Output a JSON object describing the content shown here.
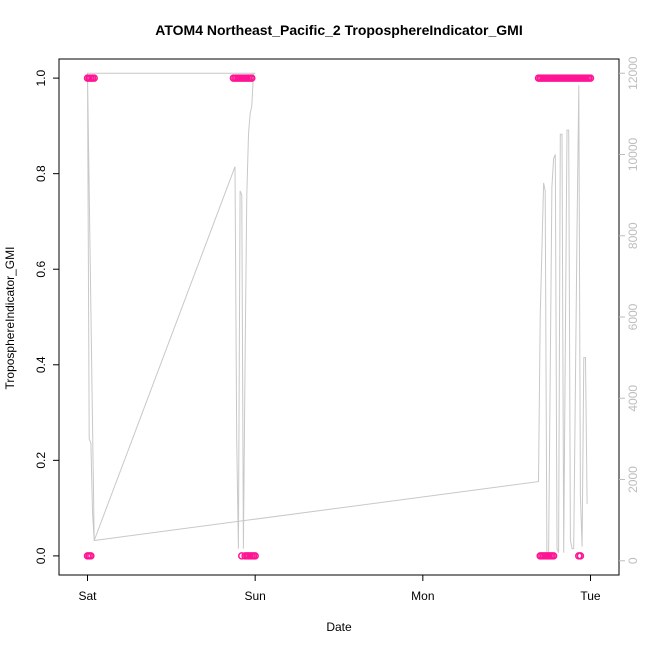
{
  "chart_data": {
    "type": "scatter",
    "title": "ATOM4 Northeast_Pacific_2 TroposphereIndicator_GMI",
    "xlabel": "Date",
    "ylabel": "TroposphereIndicator_GMI",
    "x_ticks": [
      "Sat",
      "Sun",
      "Mon",
      "Tue"
    ],
    "x_tick_positions": [
      0,
      1,
      2,
      3
    ],
    "xlim": [
      -0.17,
      3.17
    ],
    "ylim": [
      -0.04,
      1.04
    ],
    "y_ticks": [
      "0.0",
      "0.2",
      "0.4",
      "0.6",
      "0.8",
      "1.0"
    ],
    "y_tick_values": [
      0,
      0.2,
      0.4,
      0.6,
      0.8,
      1.0
    ],
    "y2lim": [
      -350,
      12350
    ],
    "y2_ticks": [
      "0",
      "2000",
      "4000",
      "6000",
      "8000",
      "10000",
      "12000"
    ],
    "y2_tick_values": [
      0,
      2000,
      4000,
      6000,
      8000,
      10000,
      12000
    ],
    "colors": {
      "points": "#ff1493",
      "altitude_line": "#c8c8c8",
      "axis": "#000000",
      "right_axis": "#bdbdbd"
    },
    "series": [
      {
        "values_scatter": [
          [
            0.0,
            1
          ],
          [
            0.01,
            1
          ],
          [
            0.02,
            1
          ],
          [
            0.03,
            1
          ],
          [
            0.04,
            1
          ],
          [
            0.0,
            0
          ],
          [
            0.01,
            0
          ],
          [
            0.02,
            0
          ],
          [
            0.87,
            1
          ],
          [
            0.88,
            1
          ],
          [
            0.89,
            1
          ],
          [
            0.9,
            1
          ],
          [
            0.91,
            1
          ],
          [
            0.92,
            1
          ],
          [
            0.93,
            1
          ],
          [
            0.94,
            1
          ],
          [
            0.95,
            1
          ],
          [
            0.96,
            1
          ],
          [
            0.97,
            1
          ],
          [
            0.98,
            1
          ],
          [
            0.92,
            0
          ],
          [
            0.94,
            0
          ],
          [
            0.95,
            0
          ],
          [
            0.96,
            0
          ],
          [
            0.97,
            0
          ],
          [
            0.98,
            0
          ],
          [
            0.99,
            0
          ],
          [
            1.0,
            0
          ],
          [
            2.69,
            1
          ],
          [
            2.7,
            1
          ],
          [
            2.71,
            1
          ],
          [
            2.72,
            1
          ],
          [
            2.73,
            1
          ],
          [
            2.74,
            1
          ],
          [
            2.75,
            1
          ],
          [
            2.76,
            1
          ],
          [
            2.77,
            1
          ],
          [
            2.78,
            1
          ],
          [
            2.79,
            1
          ],
          [
            2.8,
            1
          ],
          [
            2.81,
            1
          ],
          [
            2.82,
            1
          ],
          [
            2.83,
            1
          ],
          [
            2.84,
            1
          ],
          [
            2.85,
            1
          ],
          [
            2.86,
            1
          ],
          [
            2.87,
            1
          ],
          [
            2.88,
            1
          ],
          [
            2.89,
            1
          ],
          [
            2.9,
            1
          ],
          [
            2.91,
            1
          ],
          [
            2.92,
            1
          ],
          [
            2.93,
            1
          ],
          [
            2.94,
            1
          ],
          [
            2.95,
            1
          ],
          [
            2.96,
            1
          ],
          [
            2.97,
            1
          ],
          [
            2.98,
            1
          ],
          [
            2.99,
            1
          ],
          [
            3.0,
            1
          ],
          [
            2.7,
            0
          ],
          [
            2.71,
            0
          ],
          [
            2.72,
            0
          ],
          [
            2.73,
            0
          ],
          [
            2.74,
            0
          ],
          [
            2.75,
            0
          ],
          [
            2.76,
            0
          ],
          [
            2.77,
            0
          ],
          [
            2.78,
            0
          ],
          [
            2.93,
            0
          ],
          [
            2.94,
            0
          ]
        ],
        "altitude_line": [
          [
            0.0,
            12000
          ],
          [
            0.01,
            3000
          ],
          [
            0.02,
            2900
          ],
          [
            0.03,
            1200
          ],
          [
            0.04,
            500
          ],
          [
            0.88,
            9700
          ],
          [
            0.89,
            3000
          ],
          [
            0.9,
            300
          ],
          [
            0.91,
            9100
          ],
          [
            0.92,
            9000
          ],
          [
            0.93,
            300
          ],
          [
            0.94,
            5000
          ],
          [
            0.95,
            9000
          ],
          [
            0.96,
            10500
          ],
          [
            0.97,
            11000
          ],
          [
            0.98,
            11200
          ],
          [
            0.99,
            12000
          ],
          [
            1.0,
            12000
          ],
          [
            0.0,
            12000
          ],
          [
            0.04,
            500
          ],
          [
            2.69,
            1950
          ],
          [
            2.7,
            6000
          ],
          [
            2.72,
            9300
          ],
          [
            2.73,
            9100
          ],
          [
            2.74,
            100
          ],
          [
            2.75,
            200
          ],
          [
            2.77,
            9200
          ],
          [
            2.78,
            9900
          ],
          [
            2.79,
            10000
          ],
          [
            2.8,
            300
          ],
          [
            2.81,
            200
          ],
          [
            2.82,
            10500
          ],
          [
            2.83,
            10500
          ],
          [
            2.84,
            200
          ],
          [
            2.86,
            10600
          ],
          [
            2.87,
            10600
          ],
          [
            2.88,
            500
          ],
          [
            2.89,
            300
          ],
          [
            2.9,
            300
          ],
          [
            2.92,
            8300
          ],
          [
            2.93,
            11700
          ],
          [
            2.94,
            1600
          ],
          [
            2.95,
            350
          ],
          [
            2.96,
            5000
          ],
          [
            2.97,
            5000
          ],
          [
            2.98,
            1400
          ]
        ]
      }
    ]
  }
}
